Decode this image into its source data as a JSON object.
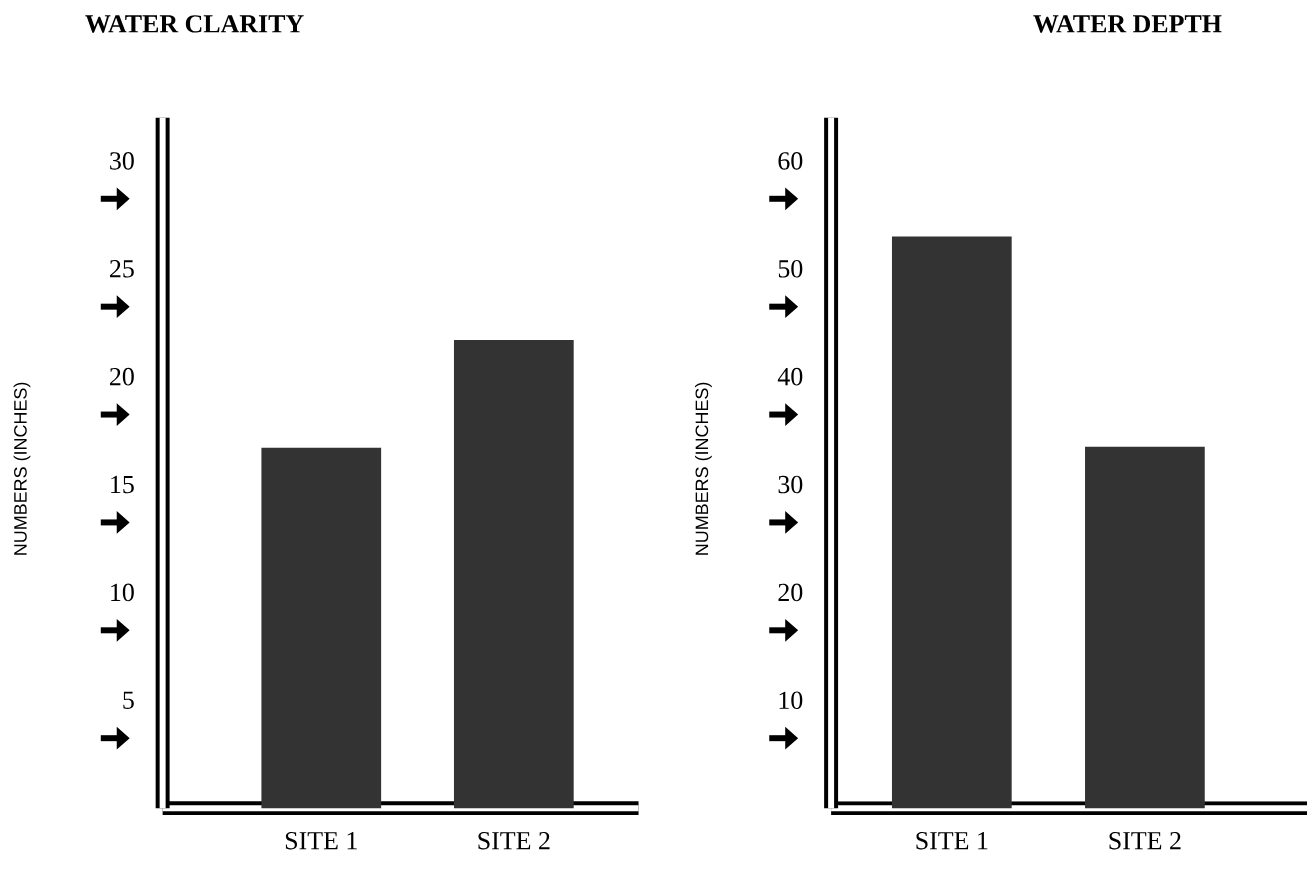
{
  "chart_data": [
    {
      "type": "bar",
      "title": "WATER CLARITY",
      "ylabel": "NUMBERS (INCHES)",
      "categories": [
        "SITE 1",
        "SITE 2"
      ],
      "values": [
        16.7,
        21.7
      ],
      "color": "#333333",
      "ylim": [
        0,
        32
      ],
      "yticks": [
        5,
        10,
        15,
        20,
        25,
        30
      ]
    },
    {
      "type": "bar",
      "title": "WATER DEPTH",
      "ylabel": "NUMBERS (INCHES)",
      "categories": [
        "SITE 1",
        "SITE 2"
      ],
      "values": [
        53,
        33.5
      ],
      "color": "#333333",
      "ylim": [
        0,
        64
      ],
      "yticks": [
        10,
        20,
        30,
        40,
        50,
        60
      ]
    }
  ]
}
